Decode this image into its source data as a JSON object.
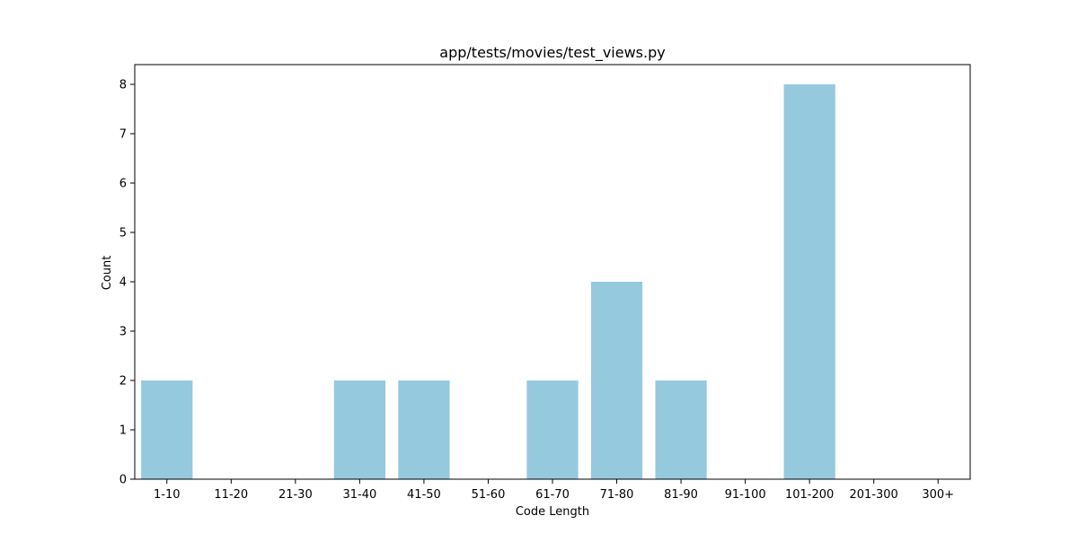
{
  "chart_data": {
    "type": "bar",
    "title": "app/tests/movies/test_views.py",
    "xlabel": "Code Length",
    "ylabel": "Count",
    "categories": [
      "1-10",
      "11-20",
      "21-30",
      "31-40",
      "41-50",
      "51-60",
      "61-70",
      "71-80",
      "81-90",
      "91-100",
      "101-200",
      "201-300",
      "300+"
    ],
    "values": [
      2,
      0,
      0,
      2,
      2,
      0,
      2,
      4,
      2,
      0,
      8,
      0,
      0
    ],
    "ylim": [
      0,
      8.4
    ],
    "yticks": [
      0,
      1,
      2,
      3,
      4,
      5,
      6,
      7,
      8
    ],
    "grid": false,
    "bar_color": "#95c9de",
    "axis_color": "#000000"
  }
}
